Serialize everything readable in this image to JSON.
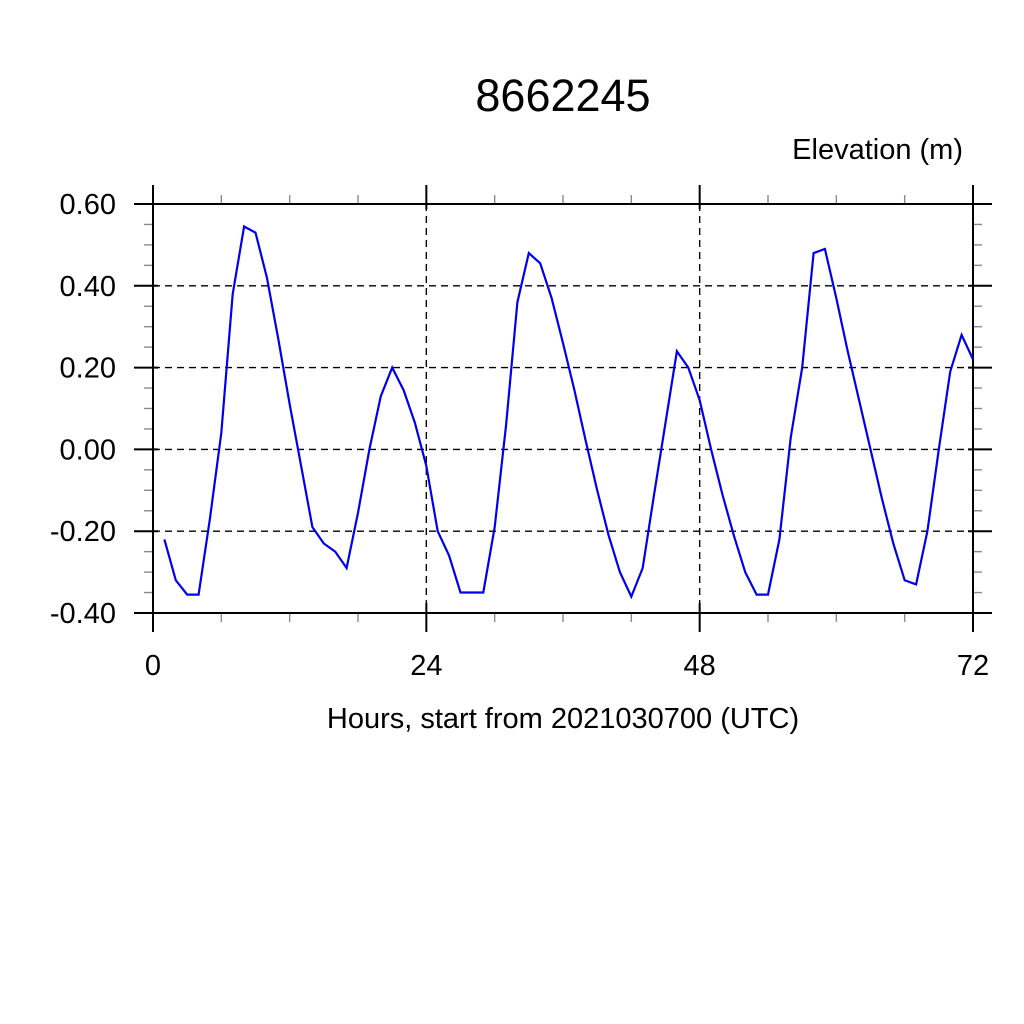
{
  "page": {
    "background": "#ffffff"
  },
  "chart_data": {
    "type": "line",
    "title": "8662245",
    "ylabel": "Elevation (m)",
    "xlabel": "Hours, start from 2021030700 (UTC)",
    "xlim": [
      0,
      72
    ],
    "ylim": [
      -0.4,
      0.6
    ],
    "xticks": {
      "major": [
        0,
        24,
        48,
        72
      ],
      "labels": [
        "0",
        "24",
        "48",
        "72"
      ],
      "minor_step": 6
    },
    "yticks": {
      "major": [
        -0.4,
        -0.2,
        0.0,
        0.2,
        0.4,
        0.6
      ],
      "labels": [
        "-0.40",
        "-0.20",
        "0.00",
        "0.20",
        "0.40",
        "0.60"
      ],
      "minor_step": 0.05
    },
    "grid": {
      "style": "dashed",
      "at_major_ticks": true,
      "color": "#000000"
    },
    "legend": "none",
    "series": [
      {
        "name": "elevation",
        "color": "#0000f0",
        "x_hours": [
          1,
          2,
          3,
          4,
          5,
          6,
          7,
          8,
          9,
          10,
          11,
          12,
          13,
          14,
          15,
          16,
          17,
          18,
          19,
          20,
          21,
          22,
          23,
          24,
          25,
          26,
          27,
          28,
          29,
          30,
          31,
          32,
          33,
          34,
          35,
          36,
          37,
          38,
          39,
          40,
          41,
          42,
          43,
          44,
          45,
          46,
          47,
          48,
          49,
          50,
          51,
          52,
          53,
          54,
          55,
          56,
          57,
          58,
          59,
          60,
          61,
          62,
          63,
          64,
          65,
          66,
          67,
          68,
          69,
          70,
          71,
          72
        ],
        "values": [
          -0.22,
          -0.32,
          -0.355,
          -0.355,
          -0.17,
          0.04,
          0.38,
          0.545,
          0.53,
          0.42,
          0.27,
          0.11,
          -0.04,
          -0.19,
          -0.23,
          -0.25,
          -0.29,
          -0.155,
          0.0,
          0.13,
          0.2,
          0.145,
          0.065,
          -0.04,
          -0.2,
          -0.26,
          -0.35,
          -0.35,
          -0.35,
          -0.19,
          0.06,
          0.36,
          0.48,
          0.455,
          0.37,
          0.26,
          0.145,
          0.02,
          -0.1,
          -0.21,
          -0.3,
          -0.36,
          -0.29,
          -0.11,
          0.065,
          0.24,
          0.2,
          0.12,
          0.0,
          -0.11,
          -0.21,
          -0.3,
          -0.355,
          -0.355,
          -0.22,
          0.03,
          0.2,
          0.48,
          0.49,
          0.37,
          0.24,
          0.12,
          0.0,
          -0.12,
          -0.23,
          -0.32,
          -0.33,
          -0.2,
          0.0,
          0.19,
          0.28,
          0.22
        ]
      }
    ],
    "colors": {
      "axis": "#000000",
      "major_tick": "#000000",
      "minor_tick": "#8a8a8a",
      "line": "#0000f0",
      "text": "#000000"
    }
  }
}
